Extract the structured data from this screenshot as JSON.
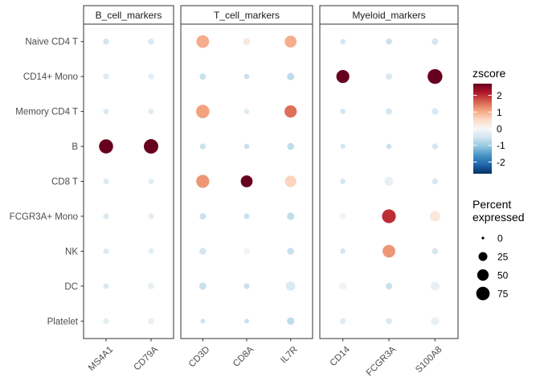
{
  "chart_data": {
    "type": "dot",
    "facets": [
      {
        "name": "B_cell_markers",
        "genes": [
          "MS4A1",
          "CD79A"
        ]
      },
      {
        "name": "T_cell_markers",
        "genes": [
          "CD3D",
          "CD8A",
          "IL7R"
        ]
      },
      {
        "name": "Myeloid_markers",
        "genes": [
          "CD14",
          "FCGR3A",
          "S100A8"
        ]
      }
    ],
    "cell_types": [
      "Naive CD4 T",
      "CD14+ Mono",
      "Memory CD4 T",
      "B",
      "CD8 T",
      "FCGR3A+ Mono",
      "NK",
      "DC",
      "Platelet"
    ],
    "points": {
      "MS4A1": [
        {
          "z": -0.5,
          "pct": 8
        },
        {
          "z": -0.4,
          "pct": 6
        },
        {
          "z": -0.4,
          "pct": 6
        },
        {
          "z": 2.7,
          "pct": 85
        },
        {
          "z": -0.4,
          "pct": 6
        },
        {
          "z": -0.4,
          "pct": 7
        },
        {
          "z": -0.4,
          "pct": 6
        },
        {
          "z": -0.4,
          "pct": 6
        },
        {
          "z": -0.3,
          "pct": 6
        }
      ],
      "CD79A": [
        {
          "z": -0.4,
          "pct": 8
        },
        {
          "z": -0.3,
          "pct": 7
        },
        {
          "z": -0.3,
          "pct": 7
        },
        {
          "z": 2.7,
          "pct": 90
        },
        {
          "z": -0.3,
          "pct": 5
        },
        {
          "z": -0.3,
          "pct": 7
        },
        {
          "z": -0.3,
          "pct": 5
        },
        {
          "z": -0.2,
          "pct": 9
        },
        {
          "z": -0.2,
          "pct": 8
        }
      ],
      "CD3D": [
        {
          "z": 1.0,
          "pct": 65
        },
        {
          "z": -0.6,
          "pct": 9
        },
        {
          "z": 1.1,
          "pct": 75
        },
        {
          "z": -0.6,
          "pct": 7
        },
        {
          "z": 1.2,
          "pct": 70
        },
        {
          "z": -0.6,
          "pct": 9
        },
        {
          "z": -0.5,
          "pct": 12
        },
        {
          "z": -0.6,
          "pct": 14
        },
        {
          "z": -0.6,
          "pct": 3
        }
      ],
      "CD8A": [
        {
          "z": 0.3,
          "pct": 12
        },
        {
          "z": -0.6,
          "pct": 5
        },
        {
          "z": -0.3,
          "pct": 5
        },
        {
          "z": -0.6,
          "pct": 5
        },
        {
          "z": 2.7,
          "pct": 55
        },
        {
          "z": -0.6,
          "pct": 6
        },
        {
          "z": -0.1,
          "pct": 10
        },
        {
          "z": -0.6,
          "pct": 6
        },
        {
          "z": -0.6,
          "pct": 3
        }
      ],
      "IL7R": [
        {
          "z": 1.0,
          "pct": 55
        },
        {
          "z": -0.7,
          "pct": 14
        },
        {
          "z": 1.5,
          "pct": 60
        },
        {
          "z": -0.7,
          "pct": 12
        },
        {
          "z": 0.6,
          "pct": 50
        },
        {
          "z": -0.7,
          "pct": 14
        },
        {
          "z": -0.6,
          "pct": 12
        },
        {
          "z": -0.4,
          "pct": 30
        },
        {
          "z": -0.7,
          "pct": 14
        }
      ],
      "CD14": [
        {
          "z": -0.5,
          "pct": 5
        },
        {
          "z": 2.7,
          "pct": 70
        },
        {
          "z": -0.5,
          "pct": 5
        },
        {
          "z": -0.5,
          "pct": 4
        },
        {
          "z": -0.5,
          "pct": 5
        },
        {
          "z": -0.1,
          "pct": 10
        },
        {
          "z": -0.5,
          "pct": 5
        },
        {
          "z": -0.1,
          "pct": 16
        },
        {
          "z": -0.3,
          "pct": 8
        }
      ],
      "FCGR3A": [
        {
          "z": -0.6,
          "pct": 8
        },
        {
          "z": -0.4,
          "pct": 10
        },
        {
          "z": -0.5,
          "pct": 8
        },
        {
          "z": -0.6,
          "pct": 5
        },
        {
          "z": -0.2,
          "pct": 25
        },
        {
          "z": 2.0,
          "pct": 80
        },
        {
          "z": 1.2,
          "pct": 65
        },
        {
          "z": -0.6,
          "pct": 10
        },
        {
          "z": -0.4,
          "pct": 8
        }
      ],
      "S100A8": [
        {
          "z": -0.5,
          "pct": 10
        },
        {
          "z": 2.7,
          "pct": 95
        },
        {
          "z": -0.4,
          "pct": 12
        },
        {
          "z": -0.5,
          "pct": 7
        },
        {
          "z": -0.5,
          "pct": 7
        },
        {
          "z": 0.3,
          "pct": 40
        },
        {
          "z": -0.5,
          "pct": 8
        },
        {
          "z": -0.2,
          "pct": 25
        },
        {
          "z": -0.2,
          "pct": 20
        }
      ]
    },
    "color_legend": {
      "title": "zscore",
      "limits": [
        -2.7,
        2.7
      ],
      "ticks": [
        2,
        1,
        0,
        -1,
        -2
      ],
      "colors": [
        "#053061",
        "#2166ac",
        "#4393c3",
        "#92c5de",
        "#d1e5f0",
        "#f7f7f7",
        "#fddbc7",
        "#f4a582",
        "#d6604d",
        "#b2182b",
        "#67001f"
      ]
    },
    "size_legend": {
      "title": [
        "Percent",
        "expressed"
      ],
      "breaks": [
        0,
        25,
        50,
        75
      ],
      "labels": [
        "0",
        "25",
        "50",
        "75"
      ],
      "range_max": 95
    },
    "grid": false,
    "legend_position": "right"
  }
}
